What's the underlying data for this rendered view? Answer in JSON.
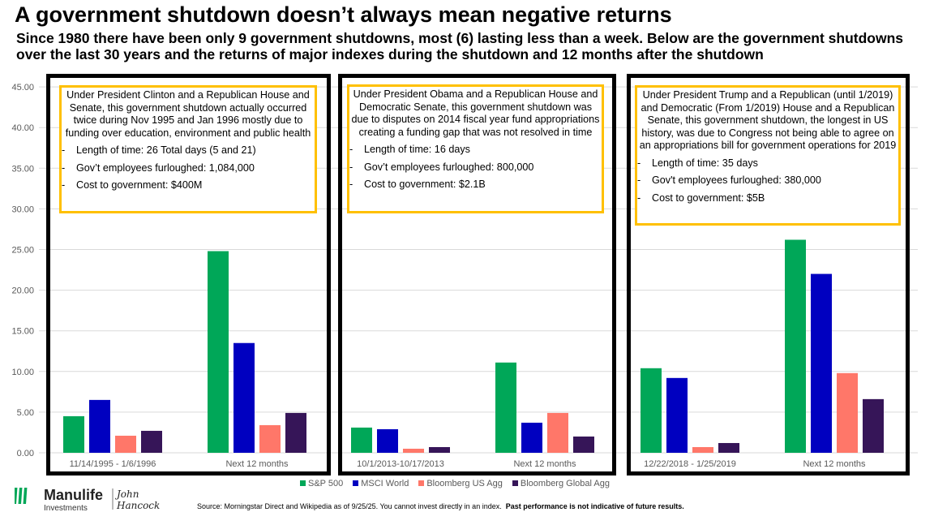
{
  "header": {
    "title": "A government shutdown doesn’t always mean negative returns",
    "subtitle": "Since 1980 there have been only 9 government shutdowns, most (6) lasting less than a week.  Below are the government shutdowns over the last 30 years and the returns of major indexes during the shutdown and 12 months after the shutdown"
  },
  "notes": [
    {
      "desc": "Under President Clinton and a Republican House and Senate, this government shutdown actually occurred twice during Nov 1995 and Jan 1996 mostly due to funding over education, environment and public health",
      "facts": [
        "Length of time: 26 Total days (5 and 21)",
        "Gov’t employees furloughed: 1,084,000",
        "Cost to government: $400M"
      ]
    },
    {
      "desc": "Under President Obama and a Republican House and Democratic Senate, this government shutdown was due to disputes on 2014 fiscal year fund appropriations creating a funding gap that was not resolved in time",
      "facts": [
        "Length of time: 16 days",
        "Gov’t employees furloughed: 800,000",
        "Cost to government: $2.1B"
      ]
    },
    {
      "desc": "Under President Trump and a Republican (until 1/2019) and Democratic (From 1/2019) House and a Republican Senate, this government shutdown, the longest in US history, was due to Congress not being able to agree on an appropriations bill for government operations for 2019",
      "facts": [
        "Length of time: 35 days",
        "Gov't employees furloughed: 380,000",
        "Cost to government: $5B"
      ]
    }
  ],
  "chart_data": {
    "type": "bar",
    "title": "",
    "ylabel": "",
    "ylim": [
      0,
      45
    ],
    "yticks": [
      "0.00",
      "5.00",
      "10.00",
      "15.00",
      "20.00",
      "25.00",
      "30.00",
      "35.00",
      "40.00",
      "45.00"
    ],
    "grid": true,
    "legend_position": "bottom",
    "series_names": [
      "S&P 500",
      "MSCI World",
      "Bloomberg US Agg",
      "Bloomberg Global Agg"
    ],
    "colors": [
      "#00a758",
      "#0000c0",
      "#ff7769",
      "#361558"
    ],
    "panels": [
      {
        "categories": [
          "11/14/1995 - 1/6/1996",
          "Next 12 months"
        ],
        "values": [
          [
            4.5,
            6.5,
            2.1,
            2.7
          ],
          [
            24.8,
            13.5,
            3.4,
            4.9
          ]
        ]
      },
      {
        "categories": [
          "10/1/2013-10/17/2013",
          "Next 12 months"
        ],
        "values": [
          [
            3.1,
            2.9,
            0.5,
            0.7
          ],
          [
            11.1,
            3.7,
            4.9,
            2.0
          ]
        ]
      },
      {
        "categories": [
          "12/22/2018 - 1/25/2019",
          "Next 12 months"
        ],
        "values": [
          [
            10.4,
            9.2,
            0.7,
            1.2
          ],
          [
            26.2,
            22.0,
            9.8,
            6.6
          ]
        ]
      }
    ]
  },
  "legend": [
    "S&P 500",
    "MSCI World",
    "Bloomberg US Agg",
    "Bloomberg Global Agg"
  ],
  "footer": {
    "source": "Source: Morningstar Direct and Wikipedia as of 9/25/25.  You cannot invest directly in an index.",
    "disclaimer": "Past performance is not indicative of future results.",
    "brand": "Manulife",
    "brand_sub": "Investments",
    "partner": "John Hancock"
  }
}
